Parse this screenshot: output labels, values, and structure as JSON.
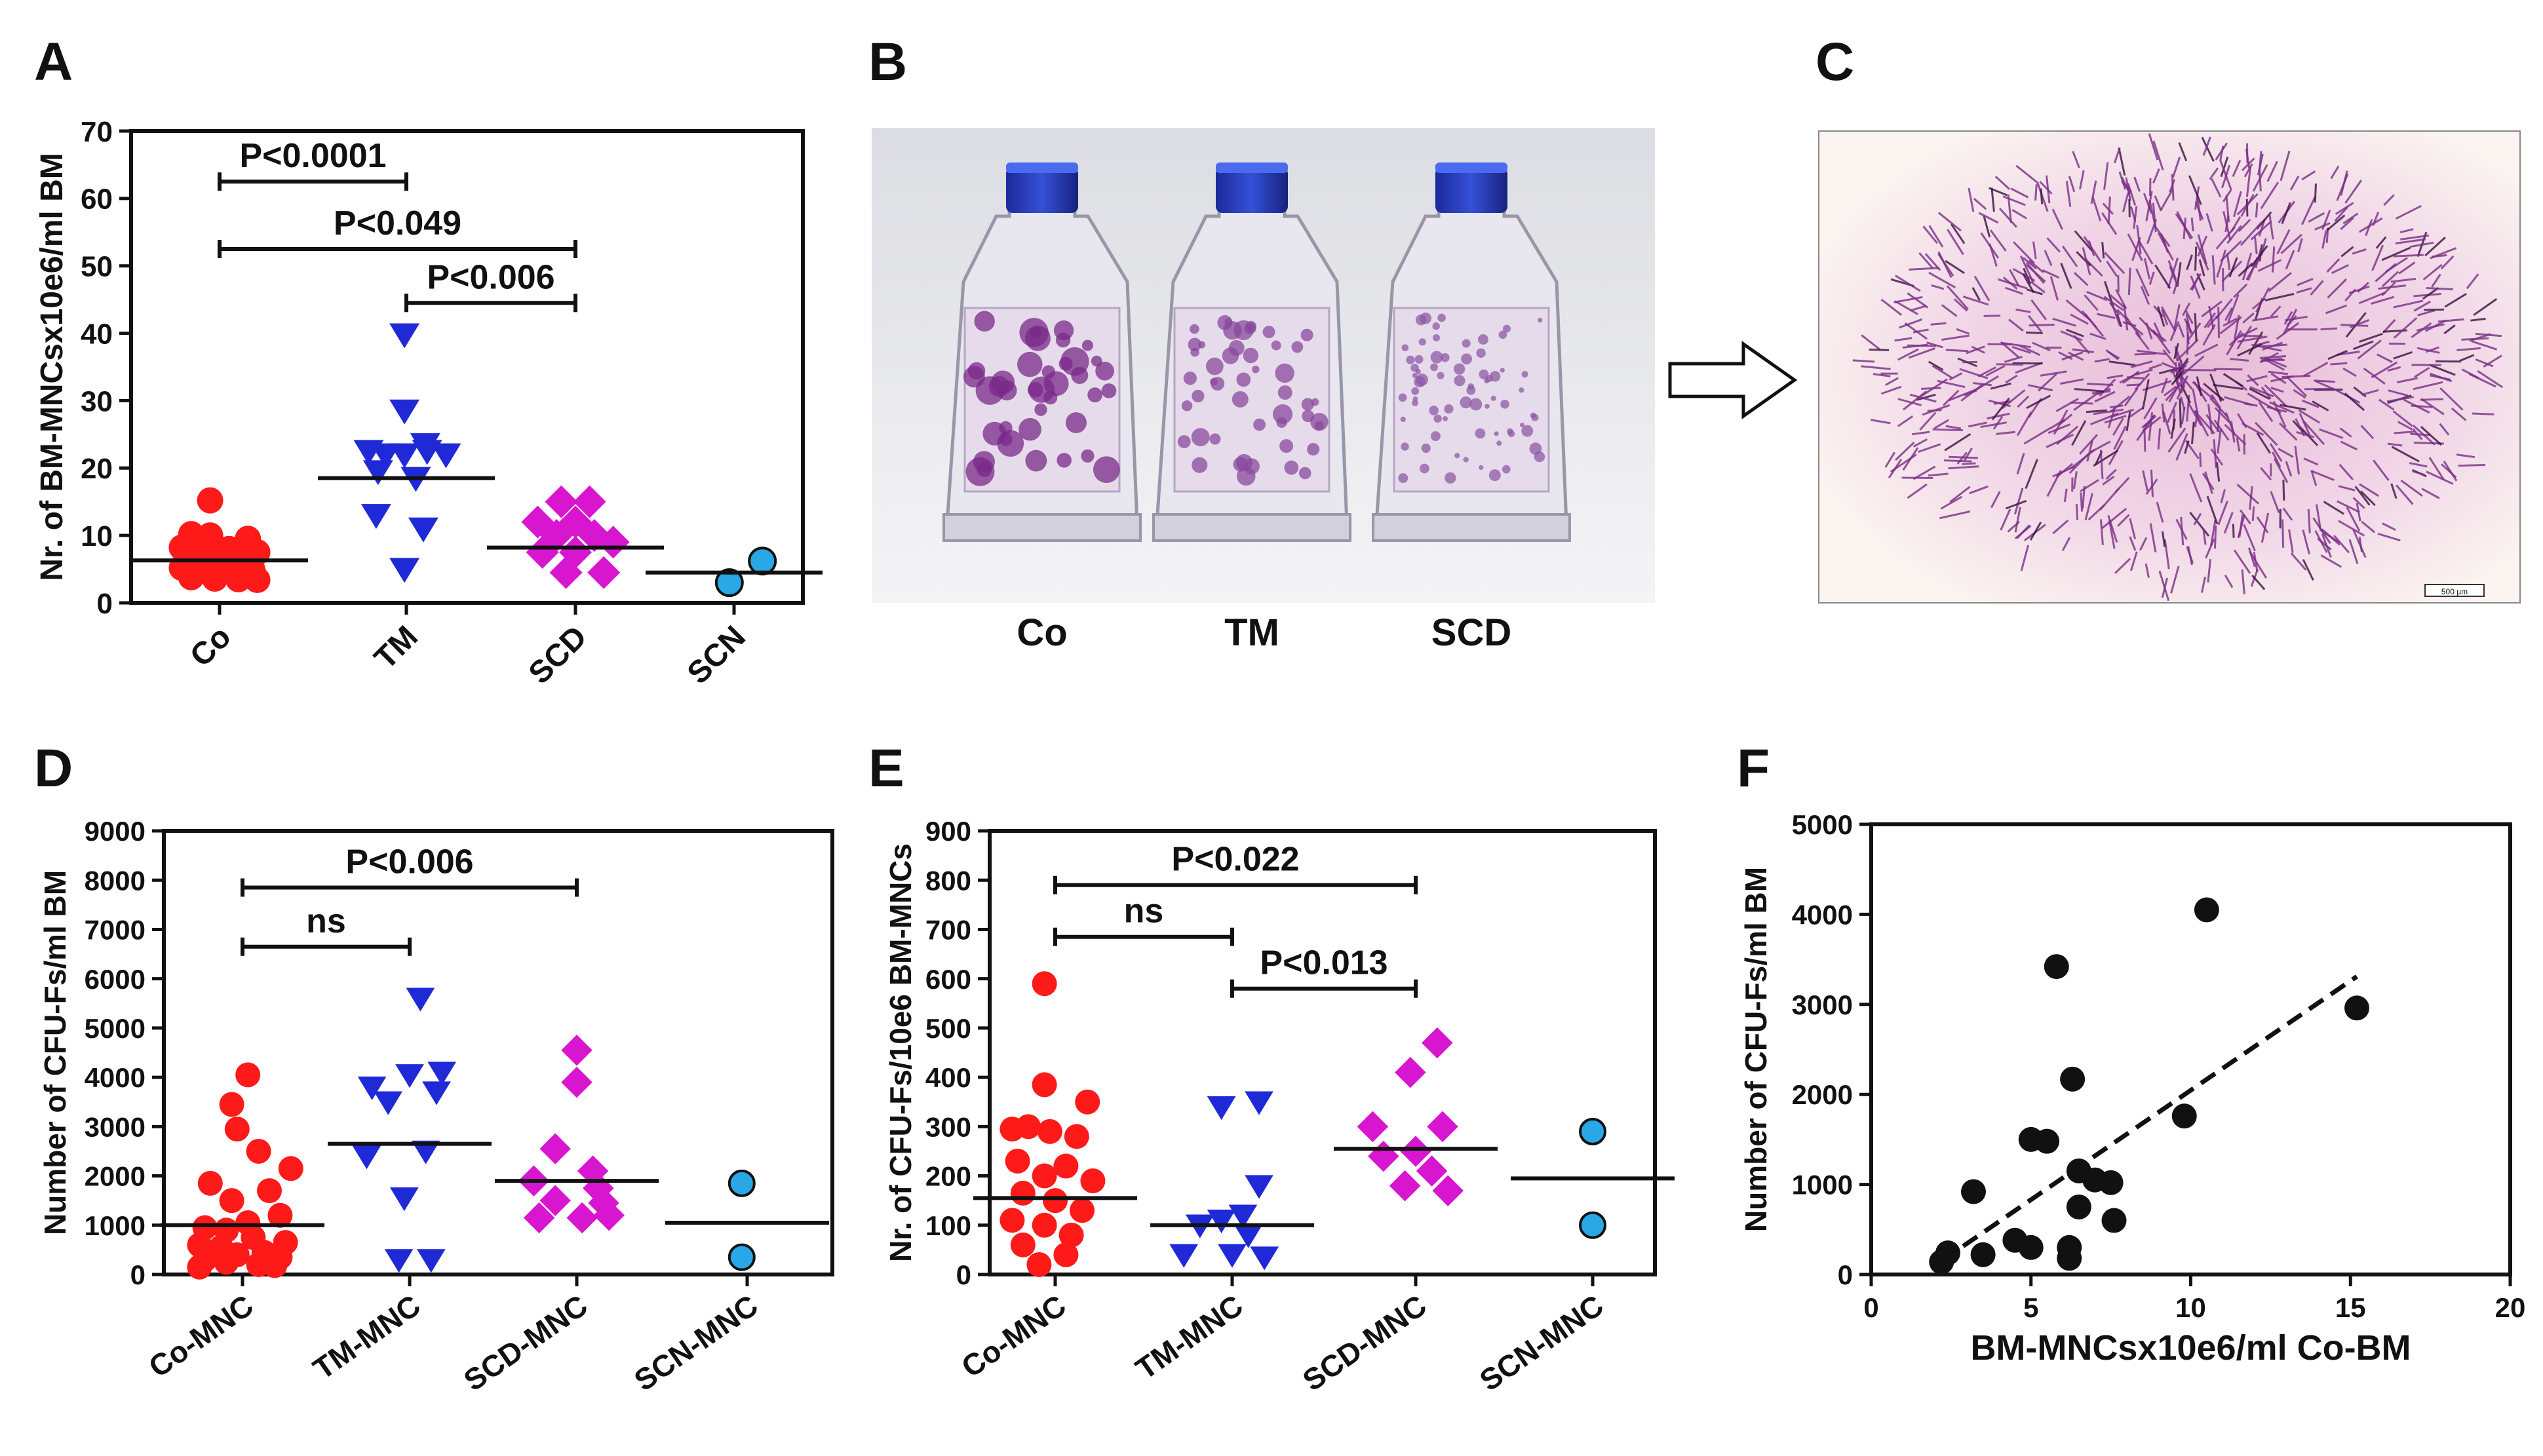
{
  "panel_letters": [
    "A",
    "B",
    "C",
    "D",
    "E",
    "F"
  ],
  "colors": {
    "Co": "#ff1a1a",
    "TM": "#1f2ad6",
    "SCD": "#d816d0",
    "SCN": "#2aa7e6",
    "F": "#111111"
  },
  "photo": {
    "flask_labels": [
      "Co",
      "TM",
      "SCD"
    ]
  },
  "scale_bar_text": "500 µm",
  "chart_data": [
    {
      "id": "A",
      "type": "scatter",
      "ylabel": "Nr. of BM-MNCsx10e6/ml BM",
      "ylim": [
        0,
        70
      ],
      "yticks": [
        0,
        10,
        20,
        30,
        40,
        50,
        60,
        70
      ],
      "categories": [
        "Co",
        "TM",
        "SCD",
        "SCN"
      ],
      "groups": [
        {
          "name": "Co",
          "marker": "circle",
          "color": "#ff1a1a",
          "median": 6.3,
          "points": [
            [
              -0.1,
              15.2
            ],
            [
              -0.3,
              10.2
            ],
            [
              -0.1,
              10.0
            ],
            [
              0.3,
              9.5
            ],
            [
              -0.4,
              8.2
            ],
            [
              -0.1,
              8.0
            ],
            [
              0.1,
              8.0
            ],
            [
              0.4,
              7.5
            ],
            [
              -0.3,
              6.8
            ],
            [
              0.05,
              6.6
            ],
            [
              0.25,
              6.5
            ],
            [
              -0.4,
              5.2
            ],
            [
              -0.15,
              5.0
            ],
            [
              0.1,
              5.0
            ],
            [
              0.35,
              4.8
            ],
            [
              -0.3,
              3.8
            ],
            [
              -0.05,
              3.6
            ],
            [
              0.2,
              3.5
            ],
            [
              0.4,
              3.4
            ]
          ]
        },
        {
          "name": "TM",
          "marker": "triangle-down",
          "color": "#1f2ad6",
          "median": 18.5,
          "points": [
            [
              -0.02,
              39.8
            ],
            [
              -0.02,
              28.5
            ],
            [
              0.2,
              23.5
            ],
            [
              -0.4,
              22.5
            ],
            [
              -0.22,
              22.0
            ],
            [
              -0.02,
              22.0
            ],
            [
              0.22,
              22.5
            ],
            [
              0.42,
              22.0
            ],
            [
              -0.3,
              19.5
            ],
            [
              0.1,
              18.5
            ],
            [
              -0.32,
              13.0
            ],
            [
              0.18,
              11.0
            ],
            [
              -0.02,
              5.0
            ]
          ]
        },
        {
          "name": "SCD",
          "marker": "diamond",
          "color": "#d816d0",
          "median": 8.2,
          "points": [
            [
              -0.15,
              15.0
            ],
            [
              0.15,
              15.0
            ],
            [
              -0.4,
              12.0
            ],
            [
              0.0,
              12.0
            ],
            [
              -0.2,
              10.0
            ],
            [
              0.2,
              10.0
            ],
            [
              0.4,
              9.0
            ],
            [
              -0.35,
              7.5
            ],
            [
              0.0,
              7.5
            ],
            [
              -0.1,
              4.5
            ],
            [
              0.3,
              4.5
            ]
          ]
        },
        {
          "name": "SCN",
          "marker": "circle",
          "color": "#2aa7e6",
          "median": 4.5,
          "points": [
            [
              -0.05,
              3.0
            ],
            [
              0.3,
              6.2
            ]
          ]
        }
      ],
      "comparisons": [
        {
          "label": "P<0.0001",
          "from": "Co",
          "to": "TM",
          "y": 62.5
        },
        {
          "label": "P<0.049",
          "from": "Co",
          "to": "SCD",
          "y": 52.5
        },
        {
          "label": "P<0.006",
          "from": "TM",
          "to": "SCD",
          "y": 44.5
        }
      ]
    },
    {
      "id": "D",
      "type": "scatter",
      "ylabel": "Number of CFU-Fs/ml BM",
      "ylim": [
        0,
        9000
      ],
      "yticks": [
        0,
        1000,
        2000,
        3000,
        4000,
        5000,
        6000,
        7000,
        8000,
        9000
      ],
      "categories": [
        "Co-MNC",
        "TM-MNC",
        "SCD-MNC",
        "SCN-MNC"
      ],
      "groups": [
        {
          "name": "Co-MNC",
          "marker": "circle",
          "color": "#ff1a1a",
          "median": 1000,
          "points": [
            [
              0.05,
              4050
            ],
            [
              -0.1,
              3450
            ],
            [
              -0.05,
              2950
            ],
            [
              0.15,
              2500
            ],
            [
              0.45,
              2150
            ],
            [
              -0.3,
              1850
            ],
            [
              0.25,
              1700
            ],
            [
              -0.1,
              1500
            ],
            [
              0.35,
              1200
            ],
            [
              0.05,
              1050
            ],
            [
              -0.35,
              950
            ],
            [
              -0.15,
              900
            ],
            [
              0.1,
              750
            ],
            [
              0.4,
              650
            ],
            [
              -0.4,
              600
            ],
            [
              -0.2,
              550
            ],
            [
              0.2,
              450
            ],
            [
              -0.05,
              400
            ],
            [
              0.35,
              350
            ],
            [
              -0.35,
              300
            ],
            [
              -0.15,
              250
            ],
            [
              0.15,
              200
            ],
            [
              0.3,
              180
            ],
            [
              -0.4,
              150
            ]
          ]
        },
        {
          "name": "TM-MNC",
          "marker": "triangle-down",
          "color": "#1f2ad6",
          "median": 2650,
          "points": [
            [
              0.1,
              5600
            ],
            [
              0.0,
              4050
            ],
            [
              0.3,
              4100
            ],
            [
              -0.35,
              3800
            ],
            [
              0.25,
              3700
            ],
            [
              -0.2,
              3500
            ],
            [
              0.15,
              2500
            ],
            [
              -0.4,
              2400
            ],
            [
              -0.05,
              1550
            ],
            [
              -0.1,
              300
            ],
            [
              0.2,
              300
            ]
          ]
        },
        {
          "name": "SCD-MNC",
          "marker": "diamond",
          "color": "#d816d0",
          "median": 1900,
          "points": [
            [
              0.0,
              4550
            ],
            [
              0.0,
              3900
            ],
            [
              -0.2,
              2550
            ],
            [
              0.15,
              2100
            ],
            [
              -0.4,
              1900
            ],
            [
              0.2,
              1750
            ],
            [
              -0.2,
              1500
            ],
            [
              0.25,
              1450
            ],
            [
              -0.35,
              1150
            ],
            [
              0.05,
              1150
            ],
            [
              0.3,
              1200
            ]
          ]
        },
        {
          "name": "SCN-MNC",
          "marker": "circle",
          "color": "#2aa7e6",
          "median": 1050,
          "points": [
            [
              -0.05,
              1850
            ],
            [
              -0.05,
              350
            ]
          ]
        }
      ],
      "comparisons": [
        {
          "label": "ns",
          "from": "Co-MNC",
          "to": "TM-MNC",
          "y": 6650
        },
        {
          "label": "P<0.006",
          "from": "Co-MNC",
          "to": "SCD-MNC",
          "y": 7850
        }
      ]
    },
    {
      "id": "E",
      "type": "scatter",
      "ylabel": "Nr. of CFU-Fs/10e6 BM-MNCs",
      "ylim": [
        0,
        900
      ],
      "yticks": [
        0,
        100,
        200,
        300,
        400,
        500,
        600,
        700,
        800,
        900
      ],
      "categories": [
        "Co-MNC",
        "TM-MNC",
        "SCD-MNC",
        "SCN-MNC"
      ],
      "groups": [
        {
          "name": "Co-MNC",
          "marker": "circle",
          "color": "#ff1a1a",
          "median": 155,
          "points": [
            [
              -0.1,
              590
            ],
            [
              -0.1,
              385
            ],
            [
              0.3,
              350
            ],
            [
              -0.4,
              295
            ],
            [
              -0.25,
              300
            ],
            [
              -0.05,
              290
            ],
            [
              0.2,
              280
            ],
            [
              -0.35,
              230
            ],
            [
              0.1,
              220
            ],
            [
              -0.1,
              200
            ],
            [
              0.35,
              190
            ],
            [
              -0.3,
              165
            ],
            [
              0.0,
              150
            ],
            [
              0.25,
              130
            ],
            [
              -0.4,
              110
            ],
            [
              -0.1,
              100
            ],
            [
              0.15,
              80
            ],
            [
              -0.3,
              60
            ],
            [
              0.1,
              40
            ],
            [
              -0.15,
              20
            ]
          ]
        },
        {
          "name": "TM-MNC",
          "marker": "triangle-down",
          "color": "#1f2ad6",
          "median": 100,
          "points": [
            [
              -0.1,
              340
            ],
            [
              0.25,
              350
            ],
            [
              0.25,
              180
            ],
            [
              -0.1,
              110
            ],
            [
              0.1,
              120
            ],
            [
              -0.3,
              100
            ],
            [
              0.15,
              80
            ],
            [
              -0.45,
              40
            ],
            [
              0.0,
              40
            ],
            [
              0.3,
              35
            ]
          ]
        },
        {
          "name": "SCD-MNC",
          "marker": "diamond",
          "color": "#d816d0",
          "median": 255,
          "points": [
            [
              0.2,
              470
            ],
            [
              -0.05,
              410
            ],
            [
              -0.4,
              300
            ],
            [
              0.25,
              300
            ],
            [
              0.0,
              250
            ],
            [
              0.15,
              210
            ],
            [
              -0.3,
              240
            ],
            [
              -0.1,
              180
            ],
            [
              0.3,
              170
            ]
          ]
        },
        {
          "name": "SCN-MNC",
          "marker": "circle",
          "color": "#2aa7e6",
          "median": 195,
          "points": [
            [
              0.0,
              290
            ],
            [
              0.0,
              100
            ]
          ]
        }
      ],
      "comparisons": [
        {
          "label": "ns",
          "from": "Co-MNC",
          "to": "TM-MNC",
          "y": 685
        },
        {
          "label": "P<0.022",
          "from": "Co-MNC",
          "to": "SCD-MNC",
          "y": 790
        },
        {
          "label": "P<0.013",
          "from": "TM-MNC",
          "to": "SCD-MNC",
          "y": 580
        }
      ]
    },
    {
      "id": "F",
      "type": "scatter",
      "xlabel": "BM-MNCsx10e6/ml Co-BM",
      "ylabel": "Number of CFU-Fs/ml BM",
      "xlim": [
        0,
        20
      ],
      "xticks": [
        0,
        5,
        10,
        15,
        20
      ],
      "ylim": [
        0,
        5000
      ],
      "yticks": [
        0,
        1000,
        2000,
        3000,
        4000,
        5000
      ],
      "points": [
        [
          10.5,
          4050
        ],
        [
          5.8,
          3420
        ],
        [
          15.2,
          2960
        ],
        [
          6.3,
          2170
        ],
        [
          9.8,
          1760
        ],
        [
          5.0,
          1500
        ],
        [
          5.5,
          1480
        ],
        [
          6.5,
          1150
        ],
        [
          7.0,
          1050
        ],
        [
          7.5,
          1020
        ],
        [
          3.2,
          920
        ],
        [
          6.5,
          750
        ],
        [
          7.6,
          600
        ],
        [
          4.5,
          380
        ],
        [
          5.0,
          300
        ],
        [
          6.2,
          300
        ],
        [
          2.4,
          240
        ],
        [
          3.5,
          220
        ],
        [
          6.2,
          180
        ],
        [
          2.2,
          140
        ]
      ],
      "trendline": {
        "style": "dashed",
        "from": [
          2.2,
          150
        ],
        "to": [
          15.2,
          3310
        ]
      }
    }
  ]
}
